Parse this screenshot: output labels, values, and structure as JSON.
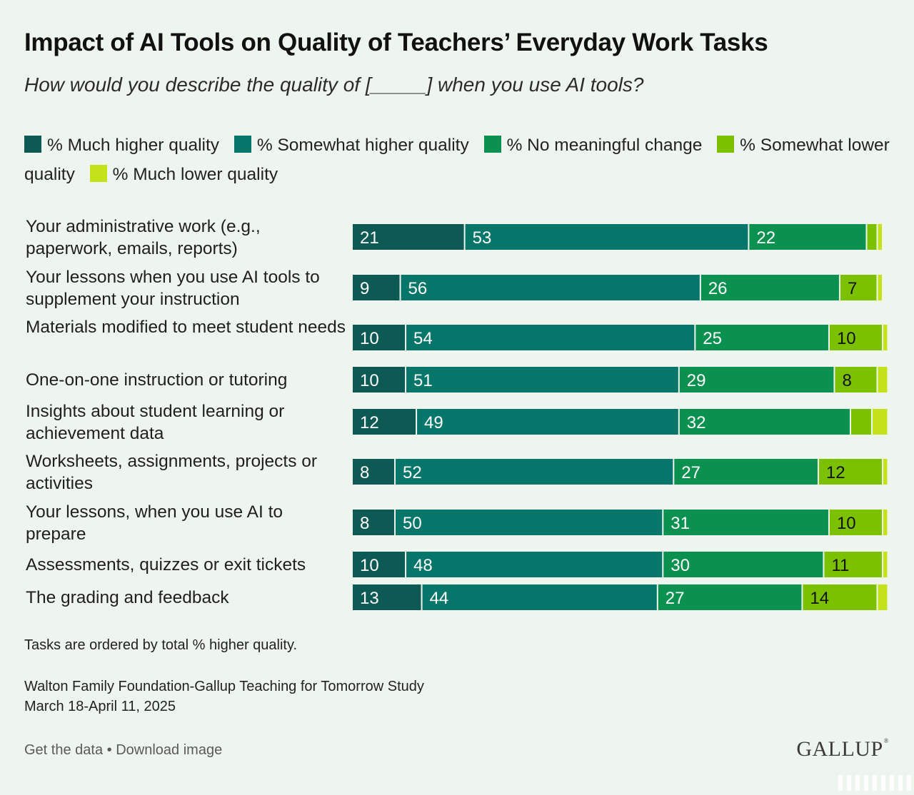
{
  "title": "Impact of AI Tools on Quality of Teachers’ Everyday Work Tasks",
  "subtitle": "How would you describe the quality of [_____] when you use AI tools?",
  "legend": [
    {
      "label": "% Much higher quality",
      "color": "#0d5a55"
    },
    {
      "label": "% Somewhat higher quality",
      "color": "#06756a"
    },
    {
      "label": "% No meaningful change",
      "color": "#0a9150"
    },
    {
      "label": "% Somewhat lower quality",
      "color": "#7bc100"
    },
    {
      "label": "% Much lower quality",
      "color": "#c4e21a"
    }
  ],
  "chart_data": {
    "type": "bar",
    "orientation": "horizontal",
    "stacked": true,
    "categories": [
      "Your administrative work (e.g., paperwork, emails, reports)",
      "Your lessons when you use AI tools to supplement your instruction",
      "Materials modified to meet student needs",
      "One-on-one instruction or tutoring",
      "Insights about student learning or achievement data",
      "Worksheets, assignments, projects or activities",
      "Your lessons, when you use AI to prepare",
      "Assessments, quizzes or exit tickets",
      "The grading and feedback"
    ],
    "series": [
      {
        "name": "% Much higher quality",
        "values": [
          21,
          9,
          10,
          10,
          12,
          8,
          8,
          10,
          13
        ]
      },
      {
        "name": "% Somewhat higher quality",
        "values": [
          53,
          56,
          54,
          51,
          49,
          52,
          50,
          48,
          44
        ]
      },
      {
        "name": "% No meaningful change",
        "values": [
          22,
          26,
          25,
          29,
          32,
          27,
          31,
          30,
          27
        ]
      },
      {
        "name": "% Somewhat lower quality",
        "values": [
          2,
          7,
          10,
          8,
          4,
          12,
          10,
          11,
          14
        ]
      },
      {
        "name": "% Much lower quality",
        "values": [
          1,
          1,
          1,
          2,
          3,
          1,
          1,
          1,
          2
        ]
      }
    ],
    "label_threshold": 5,
    "xlim": [
      0,
      100
    ]
  },
  "footnote": "Tasks are ordered by total % higher quality.",
  "source": {
    "line1": "Walton Family Foundation-Gallup Teaching for Tomorrow Study",
    "line2": "March 18-April 11, 2025"
  },
  "links": {
    "get_data": "Get the data",
    "separator": "•",
    "download": "Download image"
  },
  "brand": "GALLUP",
  "brand_mark": "®"
}
